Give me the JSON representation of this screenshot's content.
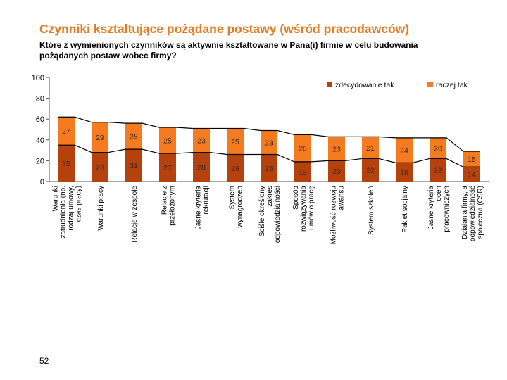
{
  "slide": {
    "title": "Czynniki kształtujące pożądane postawy (wśród pracodawców)",
    "question_line1": "Które z wymienionych czynników są aktywnie kształtowane w Pana(i) firmie w celu budowania",
    "question_line2": "pożądanych postaw wobec firmy?",
    "page_number": "52"
  },
  "chart_data": {
    "type": "bar",
    "stacked": true,
    "ylim": [
      0,
      100
    ],
    "yticks": [
      0,
      20,
      40,
      60,
      80,
      100
    ],
    "grid": false,
    "legend_position": "top-right",
    "categories": [
      [
        "Warunki",
        "zatrudnienia (np.",
        "rodzaj umowy,",
        "czas pracy)"
      ],
      [
        "Warunki pracy"
      ],
      [
        "Relacje w zespole"
      ],
      [
        "Relacje z",
        "przełożonym"
      ],
      [
        "Jasne kryteria",
        "rekrutacji"
      ],
      [
        "System",
        "wynagrodzeń"
      ],
      [
        "Ściśle określony",
        "zakres",
        "odpowiedzialności"
      ],
      [
        "Sposób",
        "rozwiązywania",
        "umów o pracę"
      ],
      [
        "Możliwość rozwoju",
        "i awansu"
      ],
      [
        "System szkoleń"
      ],
      [
        "Pakiet socjalny"
      ],
      [
        "Jasne kryteria",
        "ocen",
        "pracowniczych"
      ],
      [
        "Działania firmy, a",
        "odpowiedzialność",
        "społeczna (CSR)"
      ]
    ],
    "series": [
      {
        "name": "zdecydowanie tak",
        "color": "#b5410d",
        "values": [
          35,
          28,
          31,
          27,
          28,
          26,
          26,
          19,
          20,
          22,
          18,
          22,
          14
        ]
      },
      {
        "name": "raczej tak",
        "color": "#f47b20",
        "values": [
          27,
          29,
          25,
          25,
          23,
          25,
          23,
          26,
          23,
          21,
          24,
          20,
          15
        ]
      }
    ]
  },
  "colors": {
    "title": "#e8791f",
    "label_on_bar": "#3a2a20",
    "line": "#000000",
    "axis": "#555555"
  }
}
